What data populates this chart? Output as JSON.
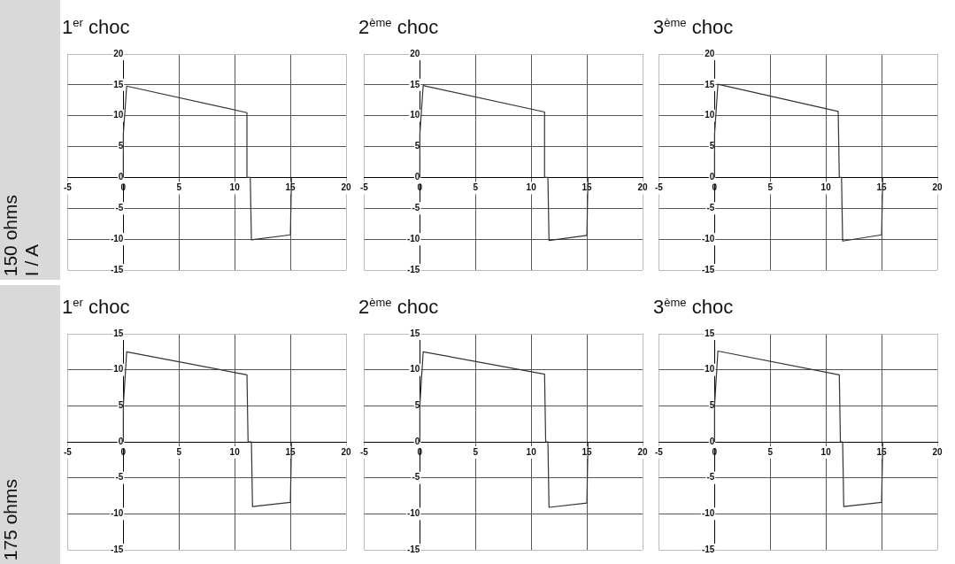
{
  "chart_data": [
    {
      "type": "line",
      "title": "1$^{er}$ choc",
      "ylabel": "150 ohms\nI / A",
      "color": "#333333",
      "marker": "none",
      "grid": true,
      "xlim": [
        -5,
        20
      ],
      "xticks": [
        -5,
        0,
        5,
        10,
        15,
        20
      ],
      "ylim": [
        -15,
        20
      ],
      "yticks": [
        -15,
        -10,
        -5,
        0,
        5,
        10,
        15,
        20
      ],
      "x": [
        0,
        0,
        0.3,
        11.1,
        11.1,
        11.4,
        11.5,
        15,
        15.1
      ],
      "values": [
        0,
        7,
        14.8,
        10.5,
        0,
        0,
        -10.1,
        -9.3,
        0
      ]
    },
    {
      "type": "line",
      "title": "2$^{ème}$ choc",
      "color": "#333333",
      "marker": "none",
      "grid": true,
      "xlim": [
        -5,
        20
      ],
      "xticks": [
        -5,
        0,
        5,
        10,
        15,
        20
      ],
      "ylim": [
        -15,
        20
      ],
      "yticks": [
        -15,
        -10,
        -5,
        0,
        5,
        10,
        15,
        20
      ],
      "x": [
        0,
        0,
        0.3,
        11.2,
        11.2,
        11.5,
        11.6,
        15,
        15.1
      ],
      "values": [
        0,
        7,
        14.9,
        10.6,
        0,
        0,
        -10.2,
        -9.4,
        0
      ]
    },
    {
      "type": "line",
      "title": "3$^{ème}$ choc",
      "color": "#333333",
      "marker": "none",
      "grid": true,
      "xlim": [
        -5,
        20
      ],
      "xticks": [
        -5,
        0,
        5,
        10,
        15,
        20
      ],
      "ylim": [
        -15,
        20
      ],
      "yticks": [
        -15,
        -10,
        -5,
        0,
        5,
        10,
        15,
        20
      ],
      "x": [
        0,
        0,
        0.3,
        11.1,
        11.2,
        11.4,
        11.5,
        15,
        15.1
      ],
      "values": [
        0,
        7,
        15.1,
        10.7,
        0,
        0,
        -10.3,
        -9.3,
        0
      ]
    },
    {
      "type": "line",
      "title": "1$^{er}$ choc",
      "ylabel": "175 ohms",
      "color": "#333333",
      "marker": "none",
      "grid": true,
      "xlim": [
        -5,
        20
      ],
      "xticks": [
        -5,
        0,
        5,
        10,
        15,
        20
      ],
      "ylim": [
        -15,
        15
      ],
      "yticks": [
        -15,
        -10,
        -5,
        0,
        5,
        10,
        15
      ],
      "x": [
        0,
        0,
        0.3,
        11.1,
        11.2,
        11.5,
        11.6,
        15,
        15.1
      ],
      "values": [
        0,
        5,
        12.5,
        9.3,
        0,
        0,
        -9,
        -8.4,
        0
      ]
    },
    {
      "type": "line",
      "title": "2$^{ème}$ choc",
      "color": "#333333",
      "marker": "none",
      "grid": true,
      "xlim": [
        -5,
        20
      ],
      "xticks": [
        -5,
        0,
        5,
        10,
        15,
        20
      ],
      "ylim": [
        -15,
        15
      ],
      "yticks": [
        -15,
        -10,
        -5,
        0,
        5,
        10,
        15
      ],
      "x": [
        0,
        0,
        0.3,
        11.2,
        11.3,
        11.5,
        11.6,
        15,
        15.1
      ],
      "values": [
        0,
        5,
        12.5,
        9.4,
        0,
        0,
        -9.1,
        -8.5,
        0
      ]
    },
    {
      "type": "line",
      "title": "3$^{ème}$ choc",
      "color": "#333333",
      "marker": "none",
      "grid": true,
      "xlim": [
        -5,
        20
      ],
      "xticks": [
        -5,
        0,
        5,
        10,
        15,
        20
      ],
      "ylim": [
        -15,
        15
      ],
      "yticks": [
        -15,
        -10,
        -5,
        0,
        5,
        10,
        15
      ],
      "x": [
        0,
        0,
        0.3,
        11.2,
        11.3,
        11.5,
        11.6,
        15,
        15.1
      ],
      "values": [
        0,
        5,
        12.6,
        9.3,
        0,
        0,
        -9,
        -8.4,
        0
      ]
    }
  ]
}
